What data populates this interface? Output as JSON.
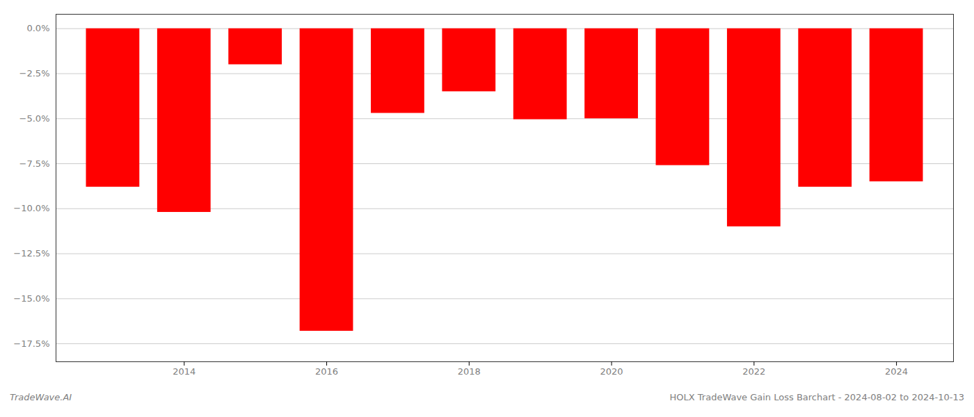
{
  "chart_data": {
    "type": "bar",
    "x": [
      2013,
      2014,
      2015,
      2016,
      2017,
      2018,
      2019,
      2020,
      2021,
      2022,
      2023,
      2024
    ],
    "values": [
      -8.8,
      -10.2,
      -2.0,
      -16.8,
      -4.7,
      -3.5,
      -5.05,
      -5.0,
      -7.6,
      -11.0,
      -8.8,
      -8.5
    ],
    "color": "#ff0000",
    "xlim": [
      2012.2,
      2024.8
    ],
    "xticks": [
      2014,
      2016,
      2018,
      2020,
      2022,
      2024
    ],
    "ylim": [
      -18.5,
      0.8
    ],
    "yticks": [
      {
        "value": 0.0,
        "label": "0.0%"
      },
      {
        "value": -2.5,
        "label": "−2.5%"
      },
      {
        "value": -5.0,
        "label": "−5.0%"
      },
      {
        "value": -7.5,
        "label": "−7.5%"
      },
      {
        "value": -10.0,
        "label": "−10.0%"
      },
      {
        "value": -12.5,
        "label": "−12.5%"
      },
      {
        "value": -15.0,
        "label": "−15.0%"
      },
      {
        "value": -17.5,
        "label": "−17.5%"
      }
    ],
    "grid": true,
    "annotations": [
      "TradeWave.AI",
      "HOLX TradeWave Gain Loss Barchart - 2024-08-02 to 2024-10-13"
    ]
  }
}
